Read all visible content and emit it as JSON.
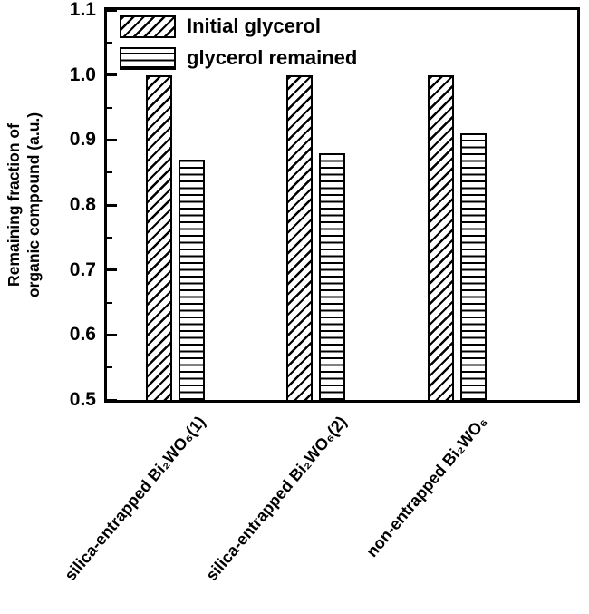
{
  "figure": {
    "background": "#ffffff",
    "frame_color": "#000000",
    "hatch_color": "#000000",
    "bar_fill": "#ffffff"
  },
  "chart_data": {
    "type": "bar",
    "title": "",
    "xlabel": "",
    "ylabel": "Remaining fraction of\norganic compound (a.u.)",
    "ylim": [
      0.5,
      1.1
    ],
    "yticks": [
      "0.5",
      "0.6",
      "0.7",
      "0.8",
      "0.9",
      "1.0",
      "1.1"
    ],
    "ytick_minor_step": 0.05,
    "grid": false,
    "legend_position": "top-left",
    "categories": [
      "silica-entrapped Bi₂WO₆(1)",
      "silica-entrapped Bi₂WO₆(2)",
      "non-entrapped Bi₂WO₆"
    ],
    "series": [
      {
        "name": "Initial glycerol",
        "hatch": "diagonal",
        "values": [
          1.0,
          1.0,
          1.0
        ]
      },
      {
        "name": "glycerol remained",
        "hatch": "horizontal",
        "values": [
          0.87,
          0.88,
          0.91
        ]
      }
    ]
  }
}
